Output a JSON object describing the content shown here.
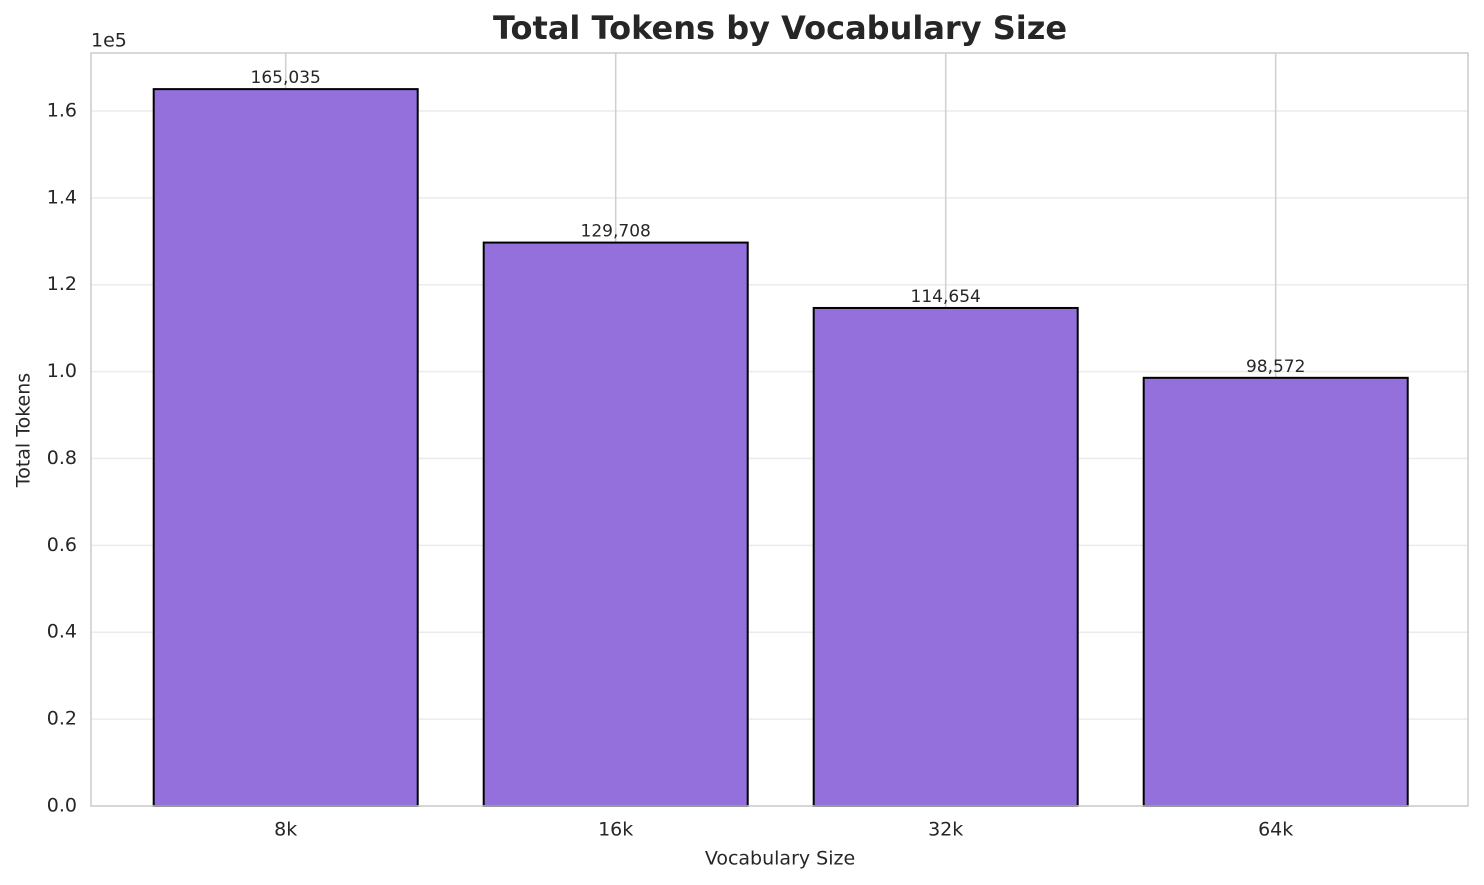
{
  "chart_data": {
    "type": "bar",
    "title": "Total Tokens by Vocabulary Size",
    "x_label": "Vocabulary Size",
    "y_label": "Total Tokens",
    "y_offset_label": "1e5",
    "categories": [
      "8k",
      "16k",
      "32k",
      "64k"
    ],
    "values": [
      165035,
      129708,
      114654,
      98572
    ],
    "value_labels": [
      "165,035",
      "129,708",
      "114,654",
      "98,572"
    ],
    "color": "#9370db",
    "edge_color": "#000000",
    "ylim": [
      0,
      173350
    ],
    "yticks": [
      {
        "value": 0,
        "label": "0.0"
      },
      {
        "value": 20000,
        "label": "0.2"
      },
      {
        "value": 40000,
        "label": "0.4"
      },
      {
        "value": 60000,
        "label": "0.6"
      },
      {
        "value": 80000,
        "label": "0.8"
      },
      {
        "value": 100000,
        "label": "1.0"
      },
      {
        "value": 120000,
        "label": "1.2"
      },
      {
        "value": 140000,
        "label": "1.4"
      },
      {
        "value": 160000,
        "label": "1.6"
      }
    ],
    "grid": true
  }
}
